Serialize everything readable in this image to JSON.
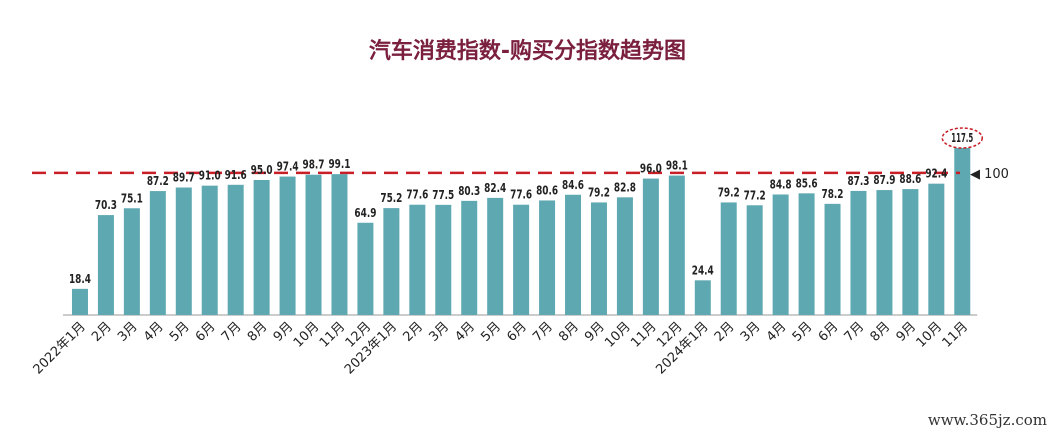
{
  "title": "汽车消费指数-购买分指数趋势图",
  "colors": {
    "title": "#7a1f3d",
    "bar": "#5ea8b2",
    "bar_edge": "#3f8e98",
    "reference": "#c81e28",
    "highlight_circle": "#c81e28",
    "axis": "#9a9a9a",
    "text": "#222222"
  },
  "watermark": "www.365jz.com",
  "chart_data": {
    "type": "bar",
    "title": "汽车消费指数-购买分指数趋势图",
    "xlabel": "",
    "ylabel": "",
    "ylim": [
      0,
      130
    ],
    "grid": false,
    "categories": [
      "2022年1月",
      "2月",
      "3月",
      "4月",
      "5月",
      "6月",
      "7月",
      "8月",
      "9月",
      "10月",
      "11月",
      "12月",
      "2023年1月",
      "2月",
      "3月",
      "4月",
      "5月",
      "6月",
      "7月",
      "8月",
      "9月",
      "10月",
      "11月",
      "12月",
      "2024年1月",
      "2月",
      "3月",
      "4月",
      "5月",
      "6月",
      "7月",
      "8月",
      "9月",
      "10月",
      "11月"
    ],
    "values": [
      18.4,
      70.3,
      75.1,
      87.2,
      89.7,
      91.0,
      91.6,
      95.0,
      97.4,
      98.7,
      99.1,
      64.9,
      75.2,
      77.6,
      77.5,
      80.3,
      82.4,
      77.6,
      80.6,
      84.6,
      79.2,
      82.8,
      96.0,
      98.1,
      24.4,
      79.2,
      77.2,
      84.8,
      85.6,
      78.2,
      87.3,
      87.9,
      88.6,
      92.4,
      117.5
    ],
    "value_labels": [
      "18.4",
      "70.3",
      "75.1",
      "87.2",
      "89.7",
      "91.0",
      "91.6",
      "95.0",
      "97.4",
      "98.7",
      "99.1",
      "64.9",
      "75.2",
      "77.6",
      "77.5",
      "80.3",
      "82.4",
      "77.6",
      "80.6",
      "84.6",
      "79.2",
      "82.8",
      "96.0",
      "98.1",
      "24.4",
      "79.2",
      "77.2",
      "84.8",
      "85.6",
      "78.2",
      "87.3",
      "87.9",
      "88.6",
      "92.4",
      "117.5"
    ],
    "reference_line": {
      "value": 100,
      "label": "◀ 100",
      "style": "dashed"
    },
    "highlighted_index": 34
  }
}
